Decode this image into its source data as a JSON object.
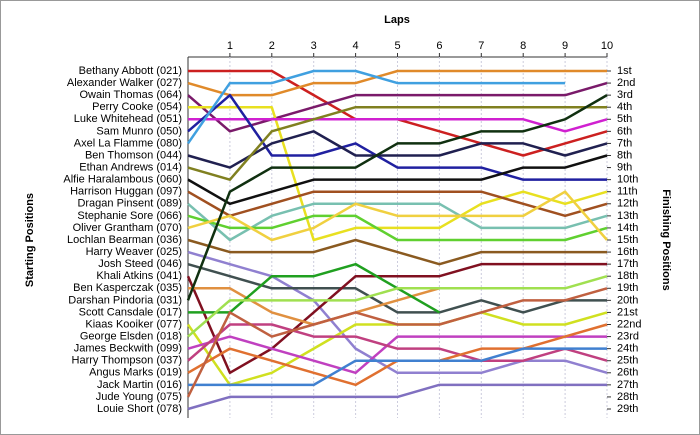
{
  "chart_data": {
    "type": "line",
    "title": "Laps",
    "ylabel": "Starting Positions",
    "y2label": "Finishing Positions",
    "x": [
      0,
      1,
      2,
      3,
      4,
      5,
      6,
      7,
      8,
      9,
      10
    ],
    "xlim": [
      0,
      10
    ],
    "xticks": [
      1,
      2,
      3,
      4,
      5,
      6,
      7,
      8,
      9,
      10
    ],
    "ylim": [
      1,
      29
    ],
    "reversed": true,
    "grid": true,
    "y2ticks": [
      {
        "value": 1,
        "label": "1st"
      },
      {
        "value": 2,
        "label": "2nd"
      },
      {
        "value": 3,
        "label": "3rd"
      },
      {
        "value": 4,
        "label": "4th"
      },
      {
        "value": 5,
        "label": "5th"
      },
      {
        "value": 6,
        "label": "6th"
      },
      {
        "value": 7,
        "label": "7th"
      },
      {
        "value": 8,
        "label": "8th"
      },
      {
        "value": 9,
        "label": "9th"
      },
      {
        "value": 10,
        "label": "10th"
      },
      {
        "value": 11,
        "label": "11th"
      },
      {
        "value": 12,
        "label": "12th"
      },
      {
        "value": 13,
        "label": "13th"
      },
      {
        "value": 14,
        "label": "14th"
      },
      {
        "value": 15,
        "label": "15th"
      },
      {
        "value": 16,
        "label": "16th"
      },
      {
        "value": 17,
        "label": "17th"
      },
      {
        "value": 18,
        "label": "18th"
      },
      {
        "value": 19,
        "label": "19th"
      },
      {
        "value": 20,
        "label": "20th"
      },
      {
        "value": 21,
        "label": "21st"
      },
      {
        "value": 22,
        "label": "22nd"
      },
      {
        "value": 23,
        "label": "23rd"
      },
      {
        "value": 24,
        "label": "24th"
      },
      {
        "value": 25,
        "label": "25th"
      },
      {
        "value": 26,
        "label": "26th"
      },
      {
        "value": 27,
        "label": "27th"
      },
      {
        "value": 28,
        "label": "28th"
      },
      {
        "value": 29,
        "label": "29th"
      }
    ],
    "series": [
      {
        "name": "Bethany Abbott (021)",
        "color": "#cc2020",
        "values": [
          1,
          1,
          1,
          3,
          5,
          5,
          6,
          7,
          8,
          7,
          6
        ]
      },
      {
        "name": "Alexander Walker (027)",
        "color": "#e08a2a",
        "values": [
          2,
          3,
          3,
          2,
          2,
          1,
          1,
          1,
          1,
          1,
          1
        ]
      },
      {
        "name": "Owain Thomas (064)",
        "color": "#7a1a6a",
        "values": [
          3,
          6,
          5,
          4,
          3,
          3,
          3,
          3,
          3,
          3,
          2
        ]
      },
      {
        "name": "Perry Cooke (054)",
        "color": "#e8e020",
        "values": [
          4,
          4,
          4,
          15,
          14,
          14,
          14,
          12,
          11,
          12,
          11
        ]
      },
      {
        "name": "Luke Whitehead (051)",
        "color": "#d020d0",
        "values": [
          5,
          5,
          5,
          5,
          5,
          5,
          5,
          5,
          5,
          6,
          5
        ]
      },
      {
        "name": "Sam Munro (050)",
        "color": "#2020a0",
        "values": [
          6,
          3,
          8,
          8,
          7,
          9,
          9,
          9,
          10,
          10,
          10
        ]
      },
      {
        "name": "Axel La Flamme (080)",
        "color": "#40a0e0",
        "values": [
          7,
          2,
          2,
          1,
          1,
          2,
          2,
          2,
          2,
          2,
          null
        ]
      },
      {
        "name": "Ben Thomson (044)",
        "color": "#202050",
        "values": [
          8,
          9,
          7,
          6,
          8,
          8,
          8,
          7,
          7,
          8,
          7
        ]
      },
      {
        "name": "Ethan Andrews (014)",
        "color": "#808020",
        "values": [
          9,
          10,
          6,
          5,
          4,
          4,
          4,
          4,
          4,
          4,
          4
        ]
      },
      {
        "name": "Alfie Haralambous (060)",
        "color": "#101010",
        "values": [
          10,
          12,
          11,
          10,
          10,
          10,
          10,
          10,
          9,
          9,
          8
        ]
      },
      {
        "name": "Harrison Huggan (097)",
        "color": "#a05020",
        "values": [
          11,
          13,
          12,
          11,
          11,
          11,
          11,
          11,
          12,
          13,
          12
        ]
      },
      {
        "name": "Dragan Pinsent (089)",
        "color": "#78c0b0",
        "values": [
          12,
          15,
          13,
          12,
          12,
          12,
          12,
          14,
          14,
          14,
          13
        ]
      },
      {
        "name": "Stephanie Sore (066)",
        "color": "#60d030",
        "values": [
          13,
          14,
          14,
          13,
          13,
          15,
          15,
          15,
          15,
          15,
          14
        ]
      },
      {
        "name": "Oliver Grantham (070)",
        "color": "#f0d040",
        "values": [
          14,
          13,
          15,
          14,
          12,
          13,
          13,
          13,
          13,
          11,
          15
        ]
      },
      {
        "name": "Lochlan Bearman (036)",
        "color": "#8a5a20",
        "values": [
          15,
          16,
          16,
          16,
          15,
          16,
          17,
          16,
          16,
          16,
          16
        ]
      },
      {
        "name": "Harry Weaver (025)",
        "color": "#9080d0",
        "values": [
          16,
          17,
          18,
          20,
          24,
          26,
          26,
          26,
          25,
          25,
          26
        ]
      },
      {
        "name": "Josh Steed (046)",
        "color": "#405050",
        "values": [
          17,
          18,
          19,
          19,
          19,
          21,
          21,
          20,
          21,
          20,
          20
        ]
      },
      {
        "name": "Khali Atkins (041)",
        "color": "#801020",
        "values": [
          18,
          26,
          24,
          21,
          18,
          18,
          18,
          17,
          17,
          17,
          17
        ]
      },
      {
        "name": "Ben Kasperczak (035)",
        "color": "#e09040",
        "values": [
          19,
          19,
          21,
          22,
          21,
          20,
          19,
          19,
          19,
          null,
          null
        ]
      },
      {
        "name": "Darshan Pindoria (031)",
        "color": "#103010",
        "values": [
          20,
          11,
          9,
          9,
          9,
          7,
          7,
          6,
          6,
          5,
          3
        ]
      },
      {
        "name": "Scott Cansdale (017)",
        "color": "#20a020",
        "values": [
          21,
          21,
          18,
          18,
          17,
          19,
          21,
          null,
          null,
          null,
          null
        ]
      },
      {
        "name": "Kiaas Kooiker (077)",
        "color": "#d0e020",
        "values": [
          22,
          27,
          26,
          24,
          22,
          22,
          22,
          21,
          22,
          22,
          21
        ]
      },
      {
        "name": "George Elsden (018)",
        "color": "#a0e050",
        "values": [
          23,
          20,
          20,
          20,
          20,
          19,
          19,
          19,
          19,
          19,
          18
        ]
      },
      {
        "name": "James Beckwith (099)",
        "color": "#c040c0",
        "values": [
          24,
          23,
          24,
          25,
          26,
          23,
          23,
          23,
          23,
          23,
          23
        ]
      },
      {
        "name": "Harry Thompson (037)",
        "color": "#c04080",
        "values": [
          25,
          22,
          22,
          23,
          23,
          24,
          24,
          25,
          25,
          24,
          25
        ]
      },
      {
        "name": "Angus Marks (019)",
        "color": "#e07030",
        "values": [
          26,
          24,
          25,
          26,
          27,
          25,
          25,
          24,
          24,
          23,
          22
        ]
      },
      {
        "name": "Jack Martin (016)",
        "color": "#4080d0",
        "values": [
          27,
          27,
          27,
          27,
          25,
          25,
          25,
          25,
          24,
          24,
          24
        ]
      },
      {
        "name": "Jude Young (075)",
        "color": "#c06040",
        "values": [
          28,
          21,
          23,
          22,
          21,
          22,
          22,
          21,
          20,
          20,
          19
        ]
      },
      {
        "name": "Louie Short (078)",
        "color": "#8070c0",
        "values": [
          29,
          28,
          28,
          28,
          28,
          28,
          27,
          27,
          27,
          27,
          27
        ]
      }
    ]
  }
}
